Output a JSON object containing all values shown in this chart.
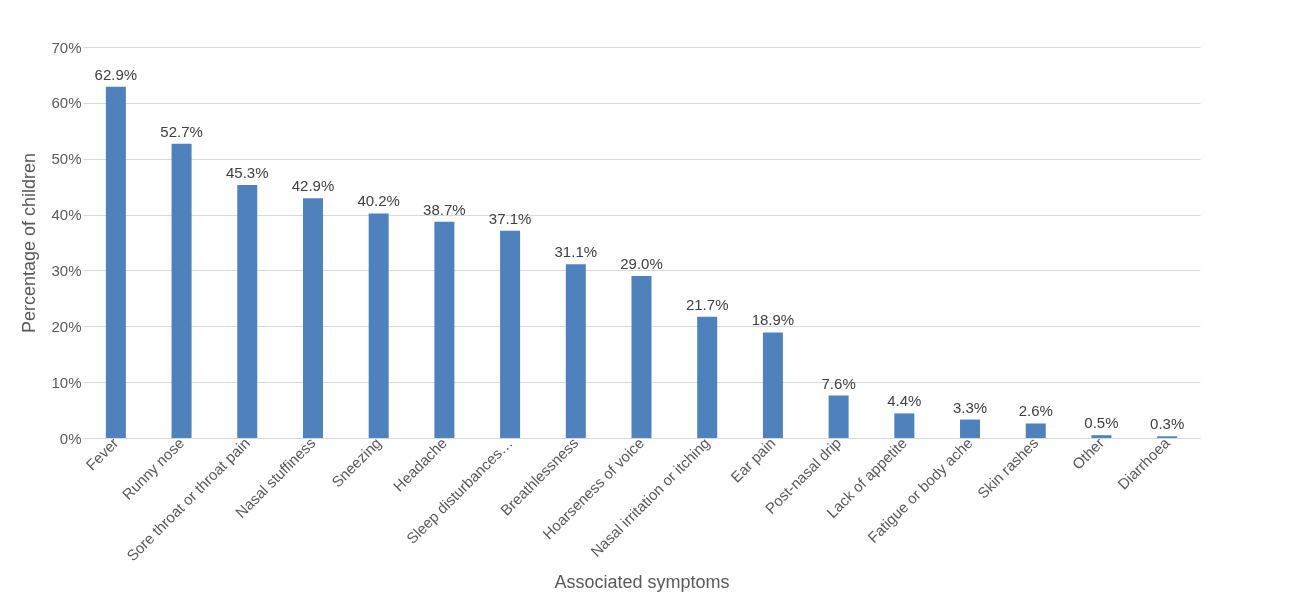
{
  "chart_data": {
    "type": "bar",
    "xlabel": "Associated symptoms",
    "ylabel": "Percentage of children",
    "categories": [
      "Fever",
      "Runny nose",
      "Sore throat or throat pain",
      "Nasal stuffiness",
      "Sneezing",
      "Headache",
      "Sleep disturbances…",
      "Breathlessness",
      "Hoarseness of voice",
      "Nasal irritation or itching",
      "Ear pain",
      "Post-nasal drip",
      "Lack of appetite",
      "Fatigue or body ache",
      "Skin rashes",
      "Other",
      "Diarrhoea"
    ],
    "values": [
      62.9,
      52.7,
      45.3,
      42.9,
      40.2,
      38.7,
      37.1,
      31.1,
      29.0,
      21.7,
      18.9,
      7.6,
      4.4,
      3.3,
      2.6,
      0.5,
      0.3
    ],
    "value_labels": [
      "62.9%",
      "52.7%",
      "45.3%",
      "42.9%",
      "40.2%",
      "38.7%",
      "37.1%",
      "31.1%",
      "29.0%",
      "21.7%",
      "18.9%",
      "7.6%",
      "4.4%",
      "3.3%",
      "2.6%",
      "0.5%",
      "0.3%"
    ],
    "color": "#4f81bd",
    "ylim": [
      0,
      70
    ],
    "yticks": [
      {
        "value": 0,
        "label": "0%"
      },
      {
        "value": 10,
        "label": "10%"
      },
      {
        "value": 20,
        "label": "20%"
      },
      {
        "value": 30,
        "label": "30%"
      },
      {
        "value": 40,
        "label": "40%"
      },
      {
        "value": 50,
        "label": "50%"
      },
      {
        "value": 60,
        "label": "60%"
      },
      {
        "value": 70,
        "label": "70%"
      }
    ],
    "grid": "y"
  }
}
